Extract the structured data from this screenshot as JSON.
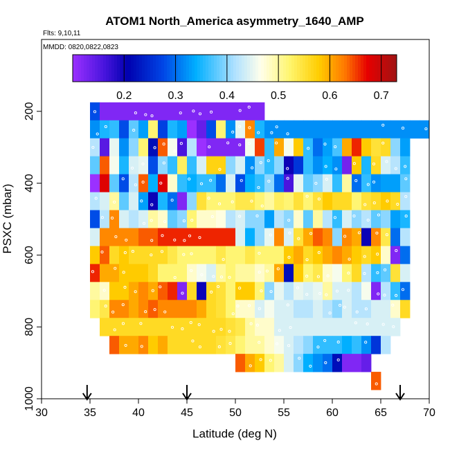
{
  "chart_data": {
    "type": "heatmap",
    "title": "ATOM1 North_America asymmetry_1640_AMP",
    "flights_label": "Flts: 9,10,11",
    "dates_label": "MMDD: 0820,0822,0823",
    "xlabel": "Latitude (deg N)",
    "ylabel": "PSXC (mbar)",
    "xlim": [
      30,
      70
    ],
    "ylim": [
      1000,
      0
    ],
    "x_ticks": [
      30,
      35,
      40,
      45,
      50,
      55,
      60,
      65,
      70
    ],
    "y_ticks": [
      200,
      400,
      600,
      800,
      1000
    ],
    "colorbar": {
      "range": [
        0.1,
        0.73
      ],
      "ticks": [
        0.2,
        0.3,
        0.4,
        0.5,
        0.6,
        0.7
      ]
    },
    "cell_width_deg": 1,
    "cell_height_mbar": 50,
    "x_centers": [
      35.5,
      36.5,
      37.5,
      38.5,
      39.5,
      40.5,
      41.5,
      42.5,
      43.5,
      44.5,
      45.5,
      46.5,
      47.5,
      48.5,
      49.5,
      50.5,
      51.5,
      52.5,
      53.5,
      54.5,
      55.5,
      56.5,
      57.5,
      58.5,
      59.5,
      60.5,
      61.5,
      62.5,
      63.5,
      64.5,
      65.5,
      66.5,
      67.5,
      68.5,
      69.5
    ],
    "rows": [
      {
        "p": 200,
        "x0": 35.5,
        "values": [
          0.28,
          0.12,
          0.12,
          0.12,
          0.12,
          0.12,
          0.12,
          0.12,
          0.12,
          0.12,
          0.12,
          0.12,
          0.12,
          0.12,
          0.12,
          0.12,
          0.12,
          0.12
        ]
      },
      {
        "p": 250,
        "x0": 35.5,
        "values": [
          0.32,
          0.35,
          0.36,
          0.28,
          0.38,
          0.33,
          0.52,
          0.27,
          0.35,
          0.33,
          0.06,
          0.14,
          0.28,
          0.52,
          0.32,
          0.45,
          0.62,
          0.35,
          0.32,
          0.32,
          0.32,
          0.32,
          0.32,
          0.32,
          0.32,
          0.32,
          0.32,
          0.32,
          0.32,
          0.32,
          0.32,
          0.32,
          0.32,
          0.32,
          0.32
        ]
      },
      {
        "p": 300,
        "x0": 35.5,
        "values": [
          0.42,
          0.15,
          0.45,
          0.32,
          0.4,
          0.52,
          0.22,
          0.64,
          0.46,
          0.16,
          0.42,
          0.1,
          0.12,
          0.12,
          0.12,
          0.12,
          0.46,
          0.65,
          0.36,
          0.6,
          0.46,
          0.58,
          0.36,
          0.3,
          0.33,
          0.37,
          0.6,
          0.66,
          0.58,
          0.55,
          0.56,
          0.4,
          0.33
        ]
      },
      {
        "p": 350,
        "x0": 35.5,
        "values": [
          0.38,
          0.64,
          0.46,
          0.35,
          0.44,
          0.45,
          0.28,
          0.4,
          0.36,
          0.53,
          0.36,
          0.44,
          0.57,
          0.57,
          0.4,
          0.44,
          0.32,
          0.4,
          0.36,
          0.4,
          0.2,
          0.26,
          0.36,
          0.32,
          0.34,
          0.32,
          0.13,
          0.58,
          0.35,
          0.56,
          0.44,
          0.42,
          0.36
        ]
      },
      {
        "p": 400,
        "x0": 35.5,
        "values": [
          0.08,
          0.68,
          0.38,
          0.28,
          0.42,
          0.64,
          0.34,
          0.68,
          0.48,
          0.36,
          0.34,
          0.36,
          0.36,
          0.3,
          0.44,
          0.28,
          0.34,
          0.36,
          0.4,
          0.3,
          0.16,
          0.45,
          0.38,
          0.4,
          0.44,
          0.36,
          0.5,
          0.3,
          0.36,
          0.32,
          0.33,
          0.33,
          0.38
        ]
      },
      {
        "p": 450,
        "x0": 35.5,
        "values": [
          0.42,
          0.44,
          0.5,
          0.38,
          0.44,
          0.33,
          0.2,
          0.35,
          0.3,
          0.12,
          0.4,
          0.55,
          0.52,
          0.52,
          0.52,
          0.54,
          0.54,
          0.52,
          0.5,
          0.53,
          0.52,
          0.55,
          0.52,
          0.55,
          0.58,
          0.56,
          0.56,
          0.52,
          0.55,
          0.56,
          0.58,
          0.56,
          0.42
        ]
      },
      {
        "p": 500,
        "x0": 35.5,
        "values": [
          0.28,
          0.42,
          0.62,
          0.44,
          0.42,
          0.44,
          0.5,
          0.48,
          0.38,
          0.4,
          0.52,
          0.48,
          0.48,
          0.47,
          0.42,
          0.44,
          0.4,
          0.4,
          0.33,
          0.42,
          0.4,
          0.48,
          0.38,
          0.5,
          0.42,
          0.36,
          0.44,
          0.4,
          0.42,
          0.38,
          0.4,
          0.33,
          0.35
        ]
      },
      {
        "p": 550,
        "x0": 35.5,
        "values": [
          0.44,
          0.62,
          0.62,
          0.62,
          0.62,
          0.64,
          0.64,
          0.66,
          0.66,
          0.66,
          0.66,
          0.66,
          0.66,
          0.66,
          0.66,
          0.44,
          0.34,
          0.4,
          0.45,
          0.62,
          0.44,
          0.55,
          0.6,
          0.64,
          0.62,
          0.4,
          0.62,
          0.6,
          0.2,
          0.62,
          0.54,
          0.3,
          0.42
        ]
      },
      {
        "p": 600,
        "x0": 35.5,
        "values": [
          0.58,
          0.64,
          0.56,
          0.58,
          0.56,
          0.56,
          0.56,
          0.56,
          0.54,
          0.52,
          0.52,
          0.52,
          0.52,
          0.54,
          0.52,
          0.52,
          0.54,
          0.52,
          0.52,
          0.52,
          0.58,
          0.6,
          0.56,
          0.58,
          0.6,
          0.62,
          0.6,
          0.58,
          0.56,
          0.58,
          0.48,
          0.12,
          0.3
        ]
      },
      {
        "p": 650,
        "x0": 35.5,
        "values": [
          0.66,
          0.6,
          0.6,
          0.58,
          0.58,
          0.58,
          0.56,
          0.52,
          0.52,
          0.52,
          0.48,
          0.46,
          0.44,
          0.5,
          0.52,
          0.5,
          0.5,
          0.48,
          0.5,
          0.6,
          0.22,
          0.58,
          0.52,
          0.54,
          0.48,
          0.46,
          0.52,
          0.56,
          0.42,
          0.36,
          0.38,
          0.55,
          0.44
        ]
      },
      {
        "p": 700,
        "x0": 35.5,
        "values": [
          0.5,
          0.48,
          0.58,
          0.58,
          0.6,
          0.62,
          0.6,
          0.64,
          0.66,
          0.12,
          0.56,
          0.2,
          0.56,
          0.55,
          0.52,
          0.58,
          0.58,
          0.52,
          0.4,
          0.45,
          0.42,
          0.45,
          0.44,
          0.45,
          0.5,
          0.44,
          0.44,
          0.42,
          0.46,
          0.12,
          0.42,
          0.36,
          0.3
        ]
      },
      {
        "p": 750,
        "x0": 35.5,
        "values": [
          0.52,
          0.54,
          0.62,
          0.62,
          0.6,
          0.62,
          0.64,
          0.62,
          0.62,
          0.62,
          0.62,
          0.6,
          0.56,
          0.55,
          0.52,
          0.48,
          0.48,
          0.44,
          0.46,
          0.44,
          0.44,
          0.42,
          0.42,
          0.44,
          0.42,
          0.4,
          0.44,
          0.42,
          0.42,
          0.44,
          0.44,
          0.48,
          0.56
        ]
      },
      {
        "p": 800,
        "x0": 36.5,
        "values": [
          0.56,
          0.56,
          0.56,
          0.56,
          0.56,
          0.56,
          0.56,
          0.56,
          0.56,
          0.56,
          0.56,
          0.56,
          0.56,
          0.55,
          0.54,
          0.5,
          0.48,
          0.48,
          0.44,
          0.44,
          0.44,
          0.44,
          0.44,
          0.44,
          0.44,
          0.44,
          0.44,
          0.44,
          0.44,
          0.44,
          0.44
        ]
      },
      {
        "p": 850,
        "x0": 37.5,
        "values": [
          0.64,
          0.6,
          0.6,
          0.62,
          0.58,
          0.6,
          0.56,
          0.56,
          0.56,
          0.56,
          0.56,
          0.55,
          0.54,
          0.52,
          0.5,
          0.5,
          0.48,
          0.46,
          0.44,
          0.42,
          0.4,
          0.36,
          0.36,
          0.36,
          0.34,
          0.36,
          0.32,
          0.26,
          0.42
        ]
      },
      {
        "p": 900,
        "x0": 50.5,
        "values": [
          0.64,
          0.6,
          0.58,
          0.52,
          0.5,
          0.44,
          0.4,
          0.34,
          0.32,
          0.3,
          0.22,
          0.12,
          0.12,
          0.14
        ]
      },
      {
        "p": 950,
        "x0": 64.5,
        "values": [
          0.64
        ]
      }
    ],
    "markers": [
      {
        "type": "arrow",
        "lat": 34.7
      },
      {
        "type": "arrow",
        "lat": 45.0
      },
      {
        "type": "arrow",
        "lat": 67.0
      }
    ]
  }
}
